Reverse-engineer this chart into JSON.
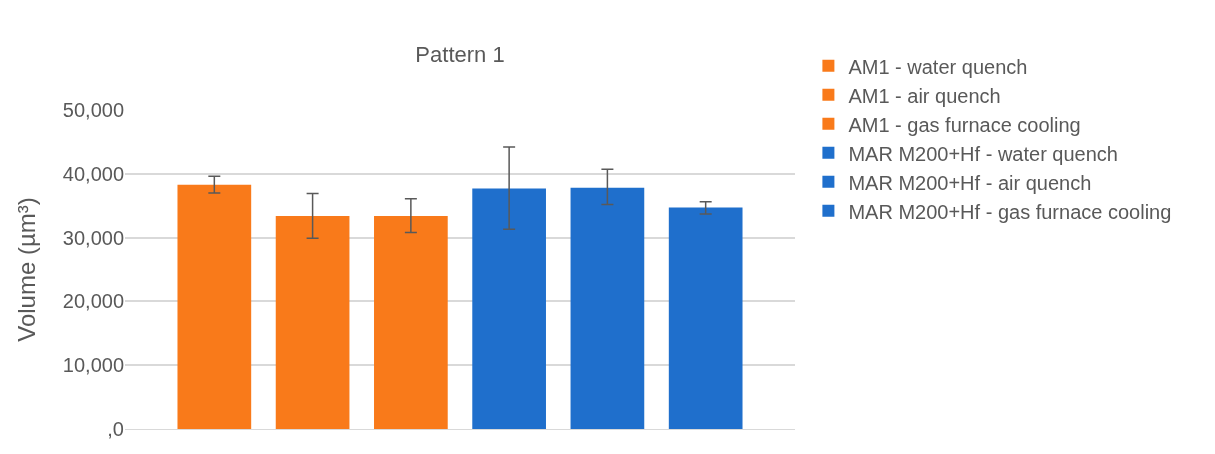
{
  "chart_data": {
    "type": "bar",
    "title": "Pattern 1",
    "ylabel": "Volume (µm³)",
    "categories": [
      null
    ],
    "series": [
      {
        "name": "AM1 - water quench",
        "color": "#f97a1a",
        "values": [
          38300
        ],
        "errors": [
          [
            37000,
            39600
          ]
        ]
      },
      {
        "name": "AM1 - air quench",
        "color": "#f97a1a",
        "values": [
          33400
        ],
        "errors": [
          [
            29900,
            36900
          ]
        ]
      },
      {
        "name": "AM1 - gas furnace cooling",
        "color": "#f97a1a",
        "values": [
          33400
        ],
        "errors": [
          [
            30800,
            36100
          ]
        ]
      },
      {
        "name": "MAR M200+Hf - water quench",
        "color": "#1f6fcc",
        "values": [
          37700
        ],
        "errors": [
          [
            31300,
            44200
          ]
        ]
      },
      {
        "name": "MAR M200+Hf - air quench",
        "color": "#1f6fcc",
        "values": [
          37800
        ],
        "errors": [
          [
            35200,
            40700
          ]
        ]
      },
      {
        "name": "MAR M200+Hf - gas furnace cooling",
        "color": "#1f6fcc",
        "values": [
          34700
        ],
        "errors": [
          [
            33700,
            35600
          ]
        ]
      }
    ],
    "ylim": [
      0,
      50000
    ],
    "yticks": [
      {
        "value": 0,
        "label": ",0"
      },
      {
        "value": 10000,
        "label": "10,000"
      },
      {
        "value": 20000,
        "label": "20,000"
      },
      {
        "value": 30000,
        "label": "30,000"
      },
      {
        "value": 40000,
        "label": "40,000"
      },
      {
        "value": 50000,
        "label": "50,000"
      }
    ],
    "grid": "y",
    "legend": "right"
  }
}
